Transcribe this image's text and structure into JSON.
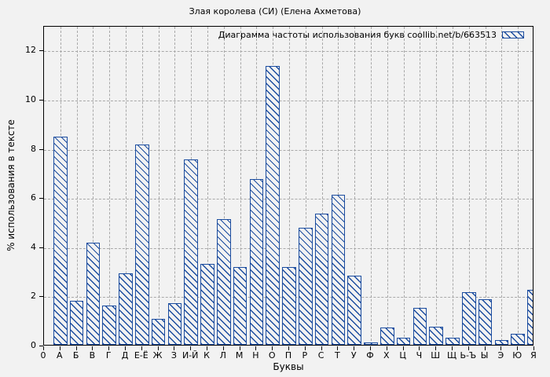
{
  "chart_data": {
    "type": "bar",
    "title": "Злая королева (СИ) (Елена Ахметова)",
    "legend": "Диаграмма частоты использования букв coollib.net/b/663513",
    "legend_position": "top-right",
    "xlabel": "Буквы",
    "ylabel": "% использования в тексте",
    "x_origin_label": "0",
    "categories": [
      "А",
      "Б",
      "В",
      "Г",
      "Д",
      "Е-Ё",
      "Ж",
      "З",
      "И-Й",
      "К",
      "Л",
      "М",
      "Н",
      "О",
      "П",
      "Р",
      "С",
      "Т",
      "У",
      "Ф",
      "Х",
      "Ц",
      "Ч",
      "Ш",
      "Щ",
      "Ь-Ъ",
      "Ы",
      "Э",
      "Ю",
      "Я"
    ],
    "values": [
      8.45,
      1.8,
      4.15,
      1.6,
      2.9,
      8.15,
      1.05,
      1.7,
      7.55,
      3.3,
      5.1,
      3.15,
      6.75,
      11.35,
      3.15,
      4.75,
      5.35,
      6.1,
      2.8,
      0.1,
      0.7,
      0.3,
      1.5,
      0.75,
      0.3,
      2.15,
      1.85,
      0.2,
      0.45,
      2.25
    ],
    "yticks": [
      0,
      2,
      4,
      6,
      8,
      10,
      12
    ],
    "ylim": [
      0,
      13
    ],
    "grid": true,
    "bar_hatch": "diagonal-backslash",
    "colors": {
      "bar": "#1b4c9f",
      "grid": "#a8a8a8",
      "background": "#f2f2f2",
      "border": "#000000",
      "text": "#000000"
    }
  }
}
